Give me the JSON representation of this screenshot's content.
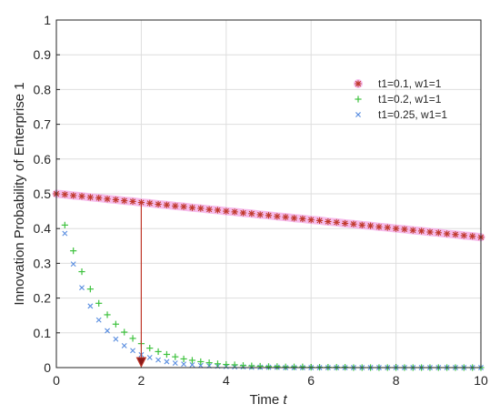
{
  "chart_data": {
    "type": "scatter",
    "title": "",
    "xlabel": "Time",
    "xlabel_italic_var": "t",
    "ylabel": "Innovation Probability of Enterprise 1",
    "xlim": [
      0,
      10
    ],
    "ylim": [
      0,
      1
    ],
    "xticks": [
      "0",
      "2",
      "4",
      "6",
      "8",
      "10"
    ],
    "yticks": [
      "0",
      "0.1",
      "0.2",
      "0.3",
      "0.4",
      "0.5",
      "0.6",
      "0.7",
      "0.8",
      "0.9",
      "1"
    ],
    "grid": true,
    "legend_position": "top-right",
    "x": [
      0,
      0.2,
      0.4,
      0.6,
      0.8,
      1.0,
      1.2,
      1.4,
      1.6,
      1.8,
      2.0,
      2.2,
      2.4,
      2.6,
      2.8,
      3.0,
      3.2,
      3.4,
      3.6,
      3.8,
      4.0,
      4.2,
      4.4,
      4.6,
      4.8,
      5.0,
      5.2,
      5.4,
      5.6,
      5.8,
      6.0,
      6.2,
      6.4,
      6.6,
      6.8,
      7.0,
      7.2,
      7.4,
      7.6,
      7.8,
      8.0,
      8.2,
      8.4,
      8.6,
      8.8,
      9.0,
      9.2,
      9.4,
      9.6,
      9.8,
      10.0
    ],
    "series": [
      {
        "name": "t1=0.1, w1=1",
        "marker": "star",
        "color": "#c0392b",
        "halo": "#f3a6e6",
        "values": [
          0.5,
          0.498,
          0.495,
          0.493,
          0.49,
          0.488,
          0.485,
          0.483,
          0.48,
          0.478,
          0.475,
          0.473,
          0.47,
          0.468,
          0.465,
          0.463,
          0.46,
          0.458,
          0.455,
          0.453,
          0.45,
          0.448,
          0.445,
          0.443,
          0.44,
          0.438,
          0.435,
          0.433,
          0.43,
          0.428,
          0.425,
          0.423,
          0.42,
          0.418,
          0.415,
          0.413,
          0.41,
          0.408,
          0.405,
          0.403,
          0.4,
          0.398,
          0.395,
          0.393,
          0.39,
          0.388,
          0.385,
          0.383,
          0.38,
          0.378,
          0.375
        ]
      },
      {
        "name": "t1=0.2, w1=1",
        "marker": "plus",
        "color": "#3ec23e",
        "values": [
          0.5,
          0.41,
          0.336,
          0.276,
          0.226,
          0.185,
          0.152,
          0.125,
          0.102,
          0.084,
          0.069,
          0.056,
          0.046,
          0.038,
          0.031,
          0.025,
          0.021,
          0.017,
          0.014,
          0.011,
          0.009,
          0.008,
          0.006,
          0.005,
          0.004,
          0.003,
          0.003,
          0.002,
          0.002,
          0.002,
          0.001,
          0.001,
          0.001,
          0.001,
          0.001,
          0.0,
          0.0,
          0.0,
          0.0,
          0.0,
          0.0,
          0.0,
          0.0,
          0.0,
          0.0,
          0.0,
          0.0,
          0.0,
          0.0,
          0.0,
          0.0
        ]
      },
      {
        "name": "t1=0.25, w1=1",
        "marker": "cross",
        "color": "#5a8ee0",
        "values": [
          0.5,
          0.386,
          0.298,
          0.23,
          0.177,
          0.137,
          0.106,
          0.082,
          0.063,
          0.049,
          0.037,
          0.029,
          0.022,
          0.017,
          0.013,
          0.01,
          0.008,
          0.006,
          0.005,
          0.004,
          0.003,
          0.002,
          0.002,
          0.001,
          0.001,
          0.001,
          0.001,
          0.0,
          0.0,
          0.0,
          0.0,
          0.0,
          0.0,
          0.0,
          0.0,
          0.0,
          0.0,
          0.0,
          0.0,
          0.0,
          0.0,
          0.0,
          0.0,
          0.0,
          0.0,
          0.0,
          0.0,
          0.0,
          0.0,
          0.0,
          0.0
        ]
      }
    ],
    "annotation_arrow": {
      "x": 2,
      "from_y": 0.475,
      "to_y": 0.0,
      "color": "#c0392b"
    }
  }
}
